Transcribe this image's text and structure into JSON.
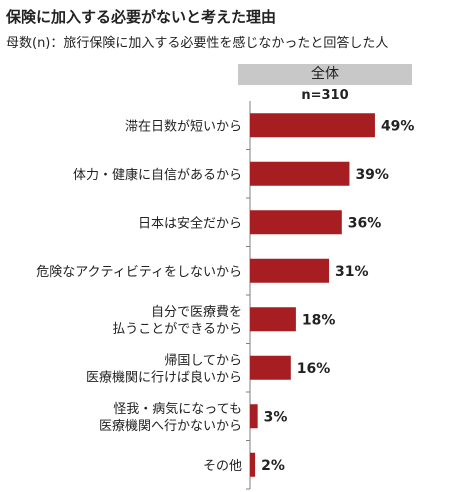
{
  "header": {
    "title": "保険に加入する必要がないと考えた理由",
    "subtitle": "母数(n)：旅行保険に加入する必要性を感じなかったと回答した人"
  },
  "column": {
    "label": "全体",
    "n_label": "n=310"
  },
  "colors": {
    "bar": "#a61e22",
    "axis": "#7f7f7f",
    "header_bg": "#c8c8c8"
  },
  "chart_data": {
    "type": "bar",
    "orientation": "horizontal",
    "title": "保険に加入する必要がないと考えた理由",
    "subtitle": "母数(n)：旅行保険に加入する必要性を感じなかったと回答した人",
    "categories": [
      [
        "滞在日数が短いから"
      ],
      [
        "体力・健康に自信があるから"
      ],
      [
        "日本は安全だから"
      ],
      [
        "危険なアクティビティをしないから"
      ],
      [
        "自分で医療費を",
        "払うことができるから"
      ],
      [
        "帰国してから",
        "医療機関に行けば良いから"
      ],
      [
        "怪我・病気になっても",
        "医療機関へ行かないから"
      ],
      [
        "その他"
      ]
    ],
    "values": [
      49,
      39,
      36,
      31,
      18,
      16,
      3,
      2
    ],
    "value_labels": [
      "49%",
      "39%",
      "36%",
      "31%",
      "18%",
      "16%",
      "3%",
      "2%"
    ],
    "unit": "%",
    "xlim": [
      0,
      100
    ],
    "grid": false,
    "legend": "none"
  }
}
